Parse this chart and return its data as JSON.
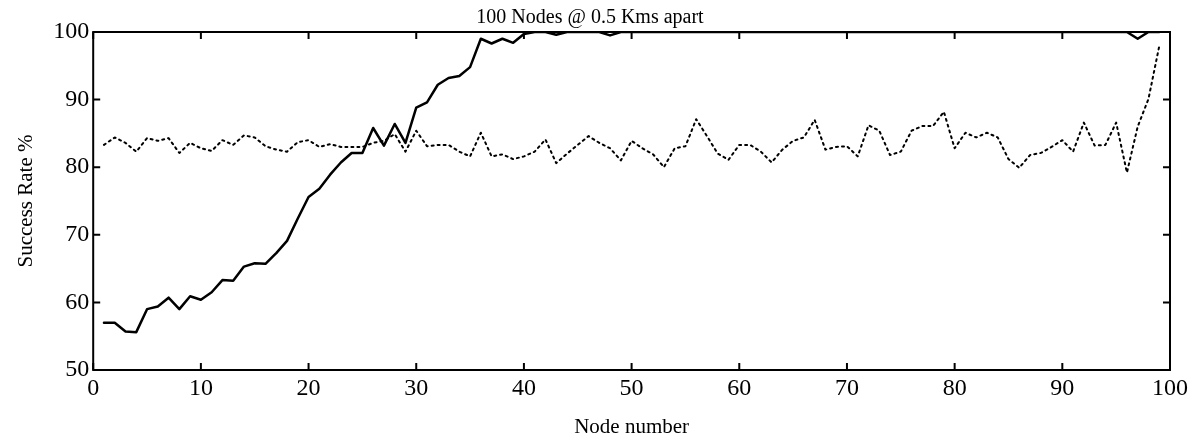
{
  "chart_data": {
    "type": "line",
    "title": "100 Nodes @ 0.5 Kms apart",
    "xlabel": "Node number",
    "ylabel": "Success Rate %",
    "xlim": [
      0,
      100
    ],
    "xticks": [
      0,
      10,
      20,
      30,
      40,
      50,
      60,
      70,
      80,
      90,
      100
    ],
    "ylim": [
      50,
      100
    ],
    "yticks": [
      50,
      60,
      70,
      80,
      90,
      100
    ],
    "grid": false,
    "legend": false,
    "marker": "none",
    "x": [
      1,
      2,
      3,
      4,
      5,
      6,
      7,
      8,
      9,
      10,
      11,
      12,
      13,
      14,
      15,
      16,
      17,
      18,
      19,
      20,
      21,
      22,
      23,
      24,
      25,
      26,
      27,
      28,
      29,
      30,
      31,
      32,
      33,
      34,
      35,
      36,
      37,
      38,
      39,
      40,
      41,
      42,
      43,
      44,
      45,
      46,
      47,
      48,
      49,
      50,
      51,
      52,
      53,
      54,
      55,
      56,
      57,
      58,
      59,
      60,
      61,
      62,
      63,
      64,
      65,
      66,
      67,
      68,
      69,
      70,
      71,
      72,
      73,
      74,
      75,
      76,
      77,
      78,
      79,
      80,
      81,
      82,
      83,
      84,
      85,
      86,
      87,
      88,
      89,
      90,
      91,
      92,
      93,
      94,
      95,
      96,
      97,
      98,
      99
    ],
    "series": [
      {
        "color": "#000000",
        "line_style": "solid",
        "values": [
          57,
          57,
          55.7,
          55.6,
          59,
          59.4,
          60.7,
          59,
          60.9,
          60.4,
          61.5,
          63.3,
          63.2,
          65.3,
          65.8,
          65.7,
          67.3,
          69.1,
          72.4,
          75.6,
          76.8,
          78.9,
          80.7,
          82.1,
          82.1,
          85.8,
          83.2,
          86.4,
          83.6,
          88.8,
          89.6,
          92.2,
          93.2,
          93.5,
          94.8,
          99,
          98.3,
          99,
          98.4,
          99.7,
          100,
          100,
          99.6,
          100,
          100,
          100,
          100,
          99.5,
          100,
          100,
          100,
          100,
          100,
          100,
          100,
          100,
          100,
          100,
          100,
          100,
          100,
          100,
          100,
          100,
          100,
          100,
          100,
          100,
          100,
          100,
          100,
          100,
          100,
          100,
          100,
          100,
          100,
          100,
          100,
          100,
          100,
          100,
          100,
          100,
          100,
          100,
          100,
          100,
          100,
          100,
          100,
          100,
          100,
          100,
          100,
          100,
          99,
          100,
          100
        ]
      },
      {
        "color": "#000000",
        "line_style": "dotted",
        "values": [
          83.3,
          84.4,
          83.6,
          82.3,
          84.3,
          83.9,
          84.3,
          82.1,
          83.6,
          82.8,
          82.4,
          84,
          83.3,
          84.7,
          84.4,
          83.1,
          82.6,
          82.3,
          83.7,
          84,
          83,
          83.4,
          83,
          83,
          83,
          83.6,
          83.9,
          84.9,
          82.3,
          85.4,
          83.1,
          83.3,
          83.3,
          82.3,
          81.6,
          85.1,
          81.6,
          81.9,
          81.2,
          81.6,
          82.3,
          84.1,
          80.6,
          82,
          83.3,
          84.6,
          83.6,
          82.8,
          81,
          83.9,
          82.8,
          81.9,
          80,
          82.8,
          83.1,
          87.1,
          84.6,
          82,
          81.1,
          83.3,
          83.3,
          82.3,
          80.7,
          82.6,
          83.9,
          84.4,
          87,
          82.6,
          83,
          83.1,
          81.6,
          86.2,
          85.4,
          81.8,
          82.3,
          85.4,
          86.1,
          86.1,
          88.2,
          82.8,
          85.1,
          84.4,
          85.1,
          84.4,
          81.2,
          79.9,
          81.8,
          82.1,
          83,
          84,
          82.3,
          86.6,
          83.2,
          83.3,
          86.6,
          79.2,
          86,
          90.1,
          97.9
        ]
      }
    ]
  }
}
